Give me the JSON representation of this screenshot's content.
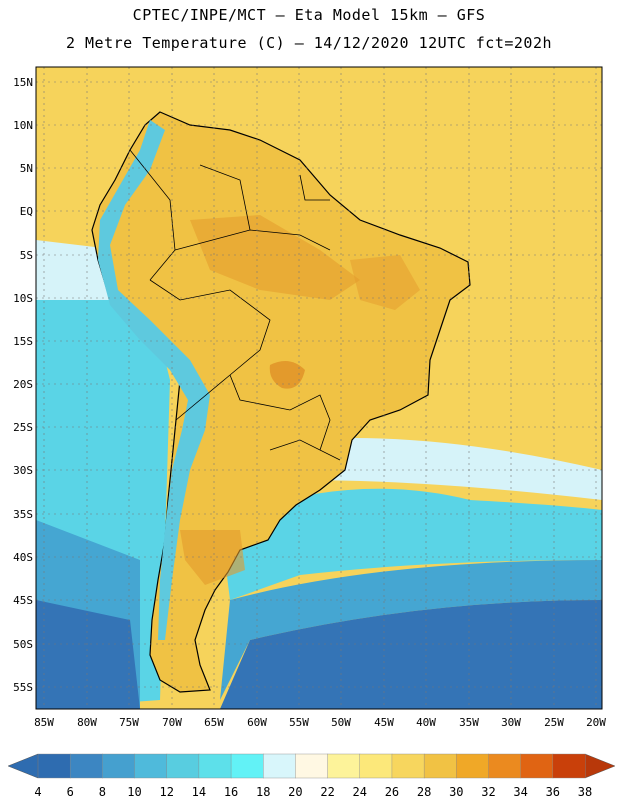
{
  "header": {
    "line1": "CPTEC/INPE/MCT –  Eta Model 15km – GFS",
    "line2": "2 Metre Temperature (C) – 14/12/2020 12UTC fct=202h"
  },
  "axes": {
    "lat_labels": [
      "15N",
      "10N",
      "5N",
      "EQ",
      "5S",
      "10S",
      "15S",
      "20S",
      "25S",
      "30S",
      "35S",
      "40S",
      "45S",
      "50S",
      "55S"
    ],
    "lon_labels": [
      "85W",
      "80W",
      "75W",
      "70W",
      "65W",
      "60W",
      "55W",
      "50W",
      "45W",
      "40W",
      "35W",
      "30W",
      "25W",
      "20W"
    ]
  },
  "colorbar": {
    "labels": [
      "4",
      "6",
      "8",
      "10",
      "12",
      "14",
      "16",
      "18",
      "20",
      "22",
      "24",
      "26",
      "28",
      "30",
      "32",
      "34",
      "36",
      "38"
    ],
    "colors": [
      "#2e6cb0",
      "#3c86c2",
      "#45a0cf",
      "#4fbadb",
      "#58cde0",
      "#5de0ea",
      "#62f2f6",
      "#d8f6fb",
      "#fff8e3",
      "#fdf39a",
      "#fce87a",
      "#f7d65e",
      "#f1c244",
      "#f0a827",
      "#eb8a1f",
      "#e06413",
      "#c9400a"
    ],
    "low_color": "#2e6cb0",
    "high_color": "#b8380a"
  },
  "colors": {
    "ocean_warm": "#f6d35b",
    "ocean_mid": "#d6f3f9",
    "ocean_cool": "#5ad4e6",
    "ocean_cold": "#45a6d2",
    "ocean_coldest": "#3474b6",
    "land_base": "#f0c244",
    "land_hot": "#e39a2c",
    "andes": "#5ec9de",
    "grid": "#777777",
    "border": "#000000"
  }
}
